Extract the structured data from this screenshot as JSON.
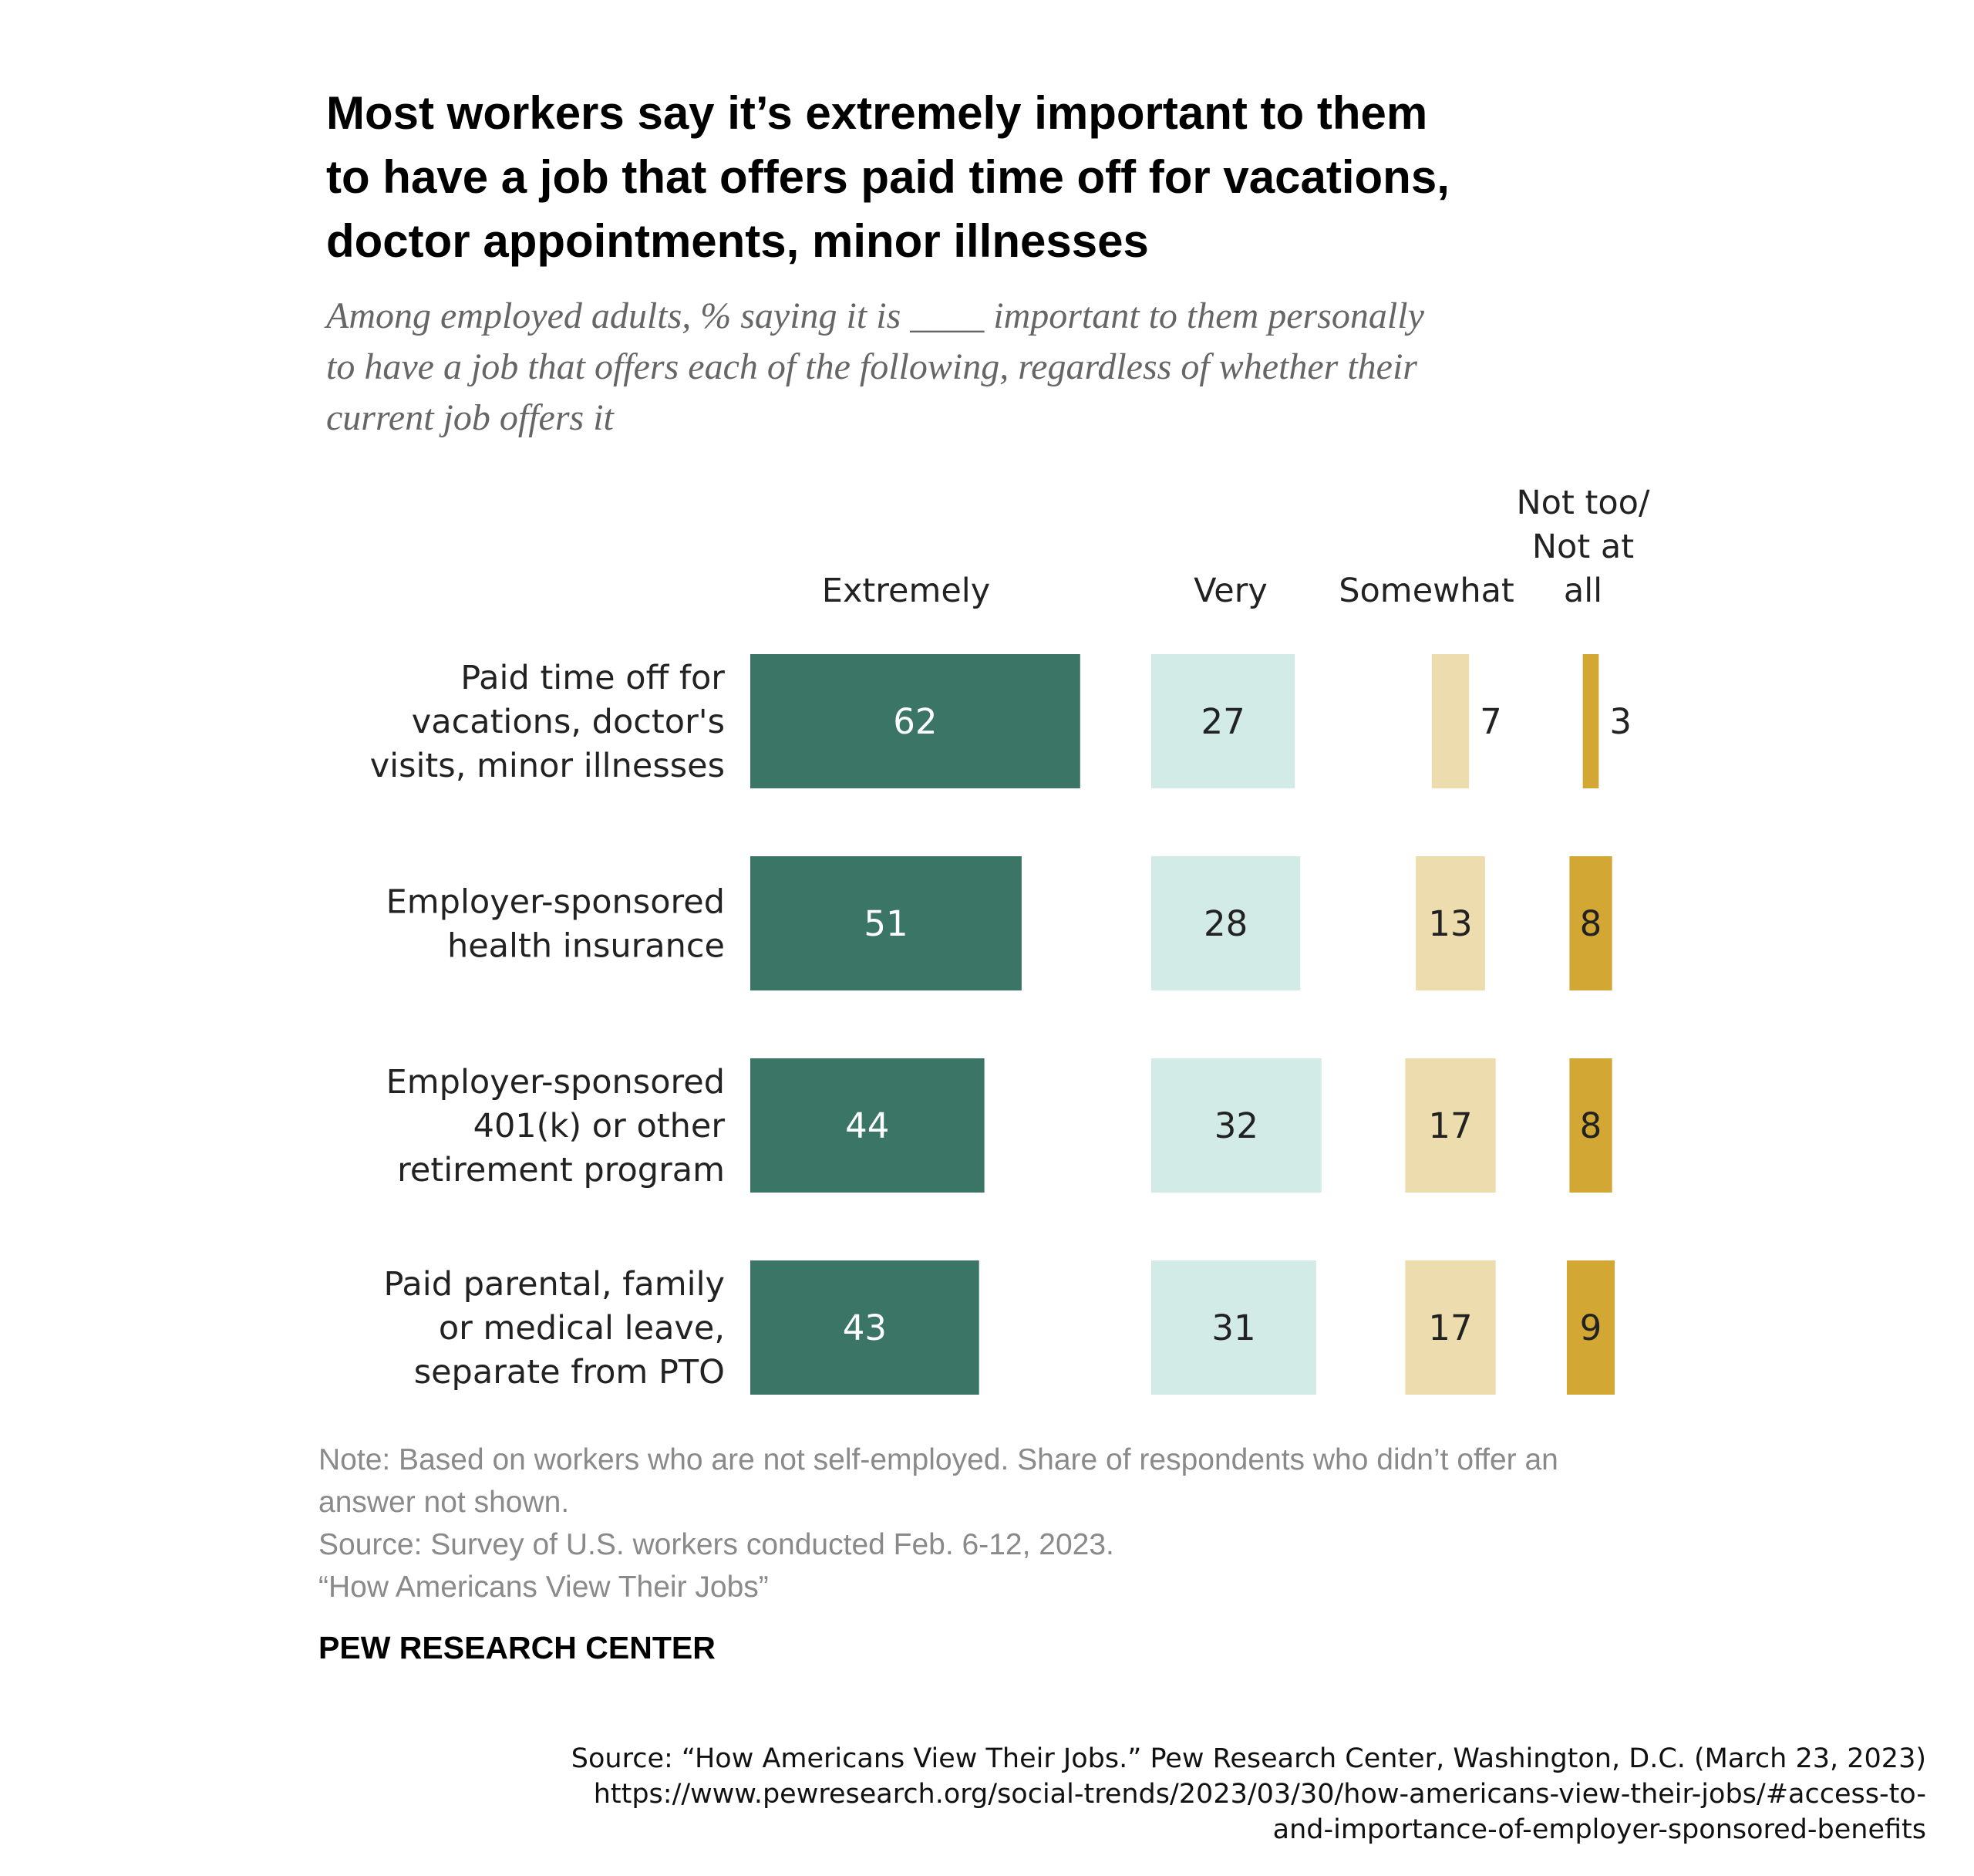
{
  "title": {
    "lines": [
      "Most workers say it’s extremely important to them",
      "to have a job that offers paid time off for vacations,",
      "doctor appointments, minor illnesses"
    ]
  },
  "subtitle": {
    "lines": [
      "Among employed adults, % saying it is ____ important to them personally",
      "to have a job that offers each of the following, regardless of whether their",
      "current job offers it"
    ]
  },
  "note": {
    "lines": [
      "Note: Based on workers who are not self-employed. Share of respondents who didn’t offer an",
      "answer not shown.",
      "Source: Survey of U.S. workers conducted Feb. 6-12, 2023.",
      "“How Americans View Their Jobs”"
    ]
  },
  "brand": "PEW RESEARCH CENTER",
  "credit": {
    "lines": [
      "Source: “How Americans View Their Jobs.” Pew Research Center, Washington, D.C. (March 23, 2023)",
      "https://www.pewresearch.org/social-trends/2023/03/30/how-americans-view-their-jobs/#access-to-",
      "and-importance-of-employer-sponsored-benefits"
    ]
  },
  "chart_data": {
    "type": "bar",
    "orientation": "horizontal",
    "layout": "diverging-columns",
    "categories": [
      [
        "Paid time off for",
        "vacations, doctor's",
        "visits, minor illnesses"
      ],
      [
        "Employer-sponsored",
        "health insurance"
      ],
      [
        "Employer-sponsored",
        "401(k) or other",
        "retirement program"
      ],
      [
        "Paid parental, family",
        "or medical leave,",
        "separate from PTO"
      ]
    ],
    "series": [
      {
        "name": "Extremely",
        "name_lines": [
          "Extremely"
        ],
        "values": [
          62,
          51,
          44,
          43
        ],
        "color": "#3b7566",
        "text_color": "#ffffff"
      },
      {
        "name": "Very",
        "name_lines": [
          "Very"
        ],
        "values": [
          27,
          28,
          32,
          31
        ],
        "color": "#d2ebe6",
        "text_color": "#222222"
      },
      {
        "name": "Somewhat",
        "name_lines": [
          "Somewhat"
        ],
        "values": [
          7,
          13,
          17,
          17
        ],
        "color": "#eddcad",
        "text_color": "#222222"
      },
      {
        "name": "Not too/ Not at all",
        "name_lines": [
          "Not too/",
          "Not at",
          "all"
        ],
        "values": [
          3,
          8,
          8,
          9
        ],
        "color": "#d3a733",
        "text_color": "#222222"
      }
    ],
    "xlabel": "",
    "ylabel": "",
    "grid": false,
    "legend": "column headers above bars"
  }
}
